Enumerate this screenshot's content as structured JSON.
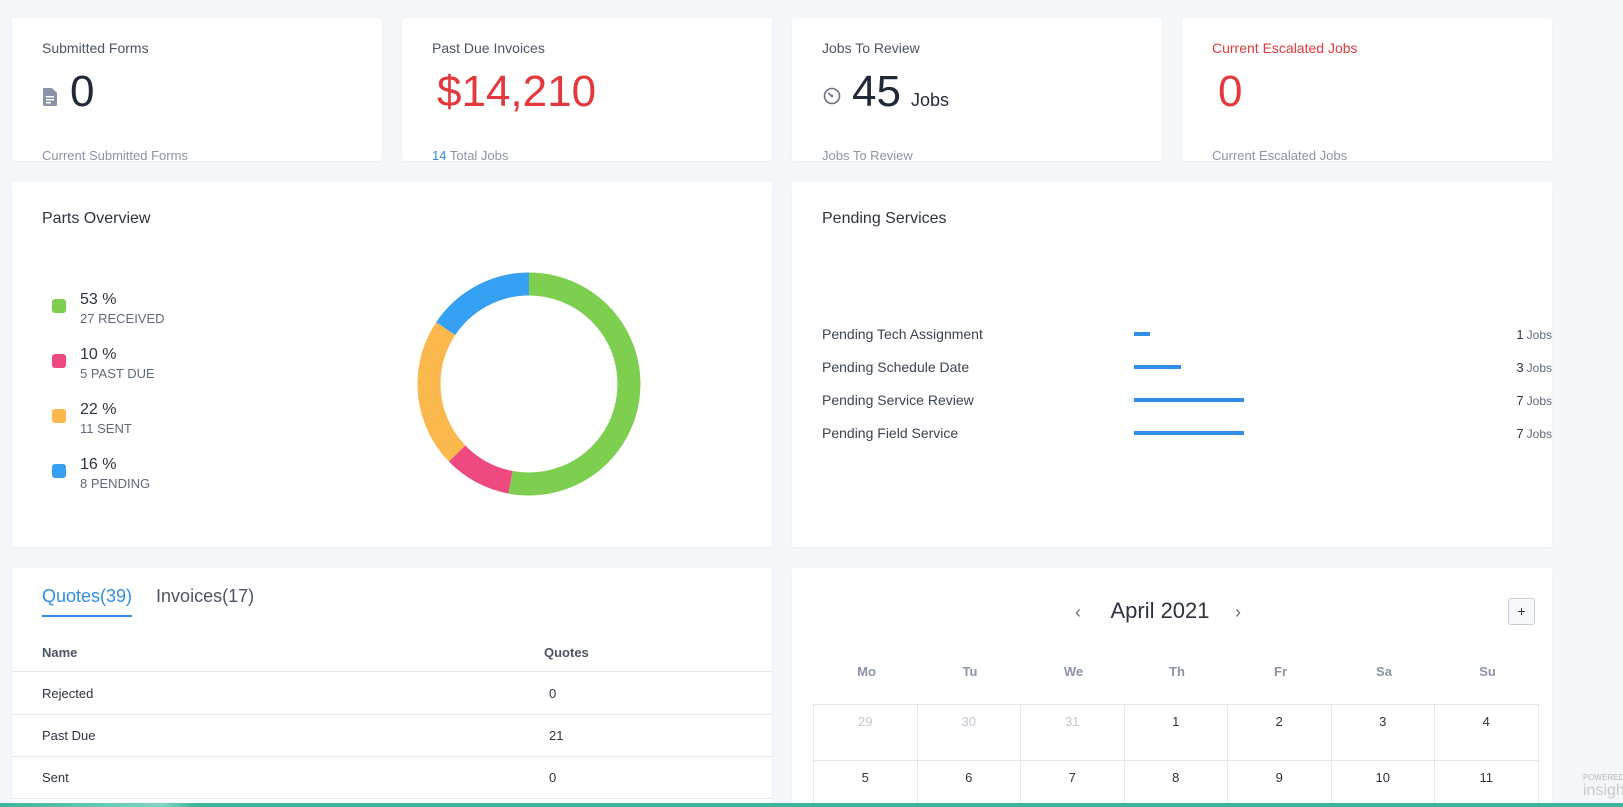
{
  "stats": [
    {
      "title": "Submitted Forms",
      "value": "0",
      "unit": "",
      "sub_strong": "",
      "sub": "Current Submitted Forms",
      "icon": "document-icon"
    },
    {
      "title": "Past Due Invoices",
      "value": "$14,210",
      "unit": "",
      "sub_strong": "14",
      "sub": "Total Jobs"
    },
    {
      "title": "Jobs To Review",
      "value": "45",
      "unit": "Jobs",
      "sub_strong": "",
      "sub": "Jobs To Review",
      "icon": "gauge-icon"
    },
    {
      "title": "Current Escalated Jobs",
      "value": "0",
      "unit": "",
      "sub_strong": "",
      "sub": "Current Escalated Jobs"
    }
  ],
  "parts_overview": {
    "title": "Parts Overview",
    "items": [
      {
        "pct": "53 %",
        "label": "27 RECEIVED",
        "color": "#7ecf50",
        "value": 27
      },
      {
        "pct": "10 %",
        "label": "5 PAST DUE",
        "color": "#ee4a7f",
        "value": 5
      },
      {
        "pct": "22 %",
        "label": "11 SENT",
        "color": "#fbb84c",
        "value": 11
      },
      {
        "pct": "16 %",
        "label": "8 PENDING",
        "color": "#36a0f2",
        "value": 8
      }
    ]
  },
  "pending_services": {
    "title": "Pending Services",
    "unit": "Jobs",
    "max": 7,
    "rows": [
      {
        "label": "Pending Tech Assignment",
        "count": "1",
        "value": 1
      },
      {
        "label": "Pending Schedule Date",
        "count": "3",
        "value": 3
      },
      {
        "label": "Pending Service Review",
        "count": "7",
        "value": 7
      },
      {
        "label": "Pending Field Service",
        "count": "7",
        "value": 7
      }
    ]
  },
  "quotes": {
    "tabs": [
      "Quotes(39)",
      "Invoices(17)"
    ],
    "columns": [
      "Name",
      "Quotes"
    ],
    "rows": [
      {
        "name": "Rejected",
        "value": "0"
      },
      {
        "name": "Past Due",
        "value": "21"
      },
      {
        "name": "Sent",
        "value": "0"
      }
    ]
  },
  "calendar": {
    "month_label": "April 2021",
    "prev": "‹",
    "next": "›",
    "add": "+",
    "weekdays": [
      "Mo",
      "Tu",
      "We",
      "Th",
      "Fr",
      "Sa",
      "Su"
    ],
    "weeks": [
      [
        {
          "d": "29",
          "muted": true
        },
        {
          "d": "30",
          "muted": true
        },
        {
          "d": "31",
          "muted": true
        },
        {
          "d": "1"
        },
        {
          "d": "2"
        },
        {
          "d": "3"
        },
        {
          "d": "4"
        }
      ],
      [
        {
          "d": "5"
        },
        {
          "d": "6"
        },
        {
          "d": "7"
        },
        {
          "d": "8"
        },
        {
          "d": "9"
        },
        {
          "d": "10"
        },
        {
          "d": "11"
        }
      ]
    ]
  },
  "footer": {
    "powered": "POWERED",
    "logo": "insigh"
  }
}
